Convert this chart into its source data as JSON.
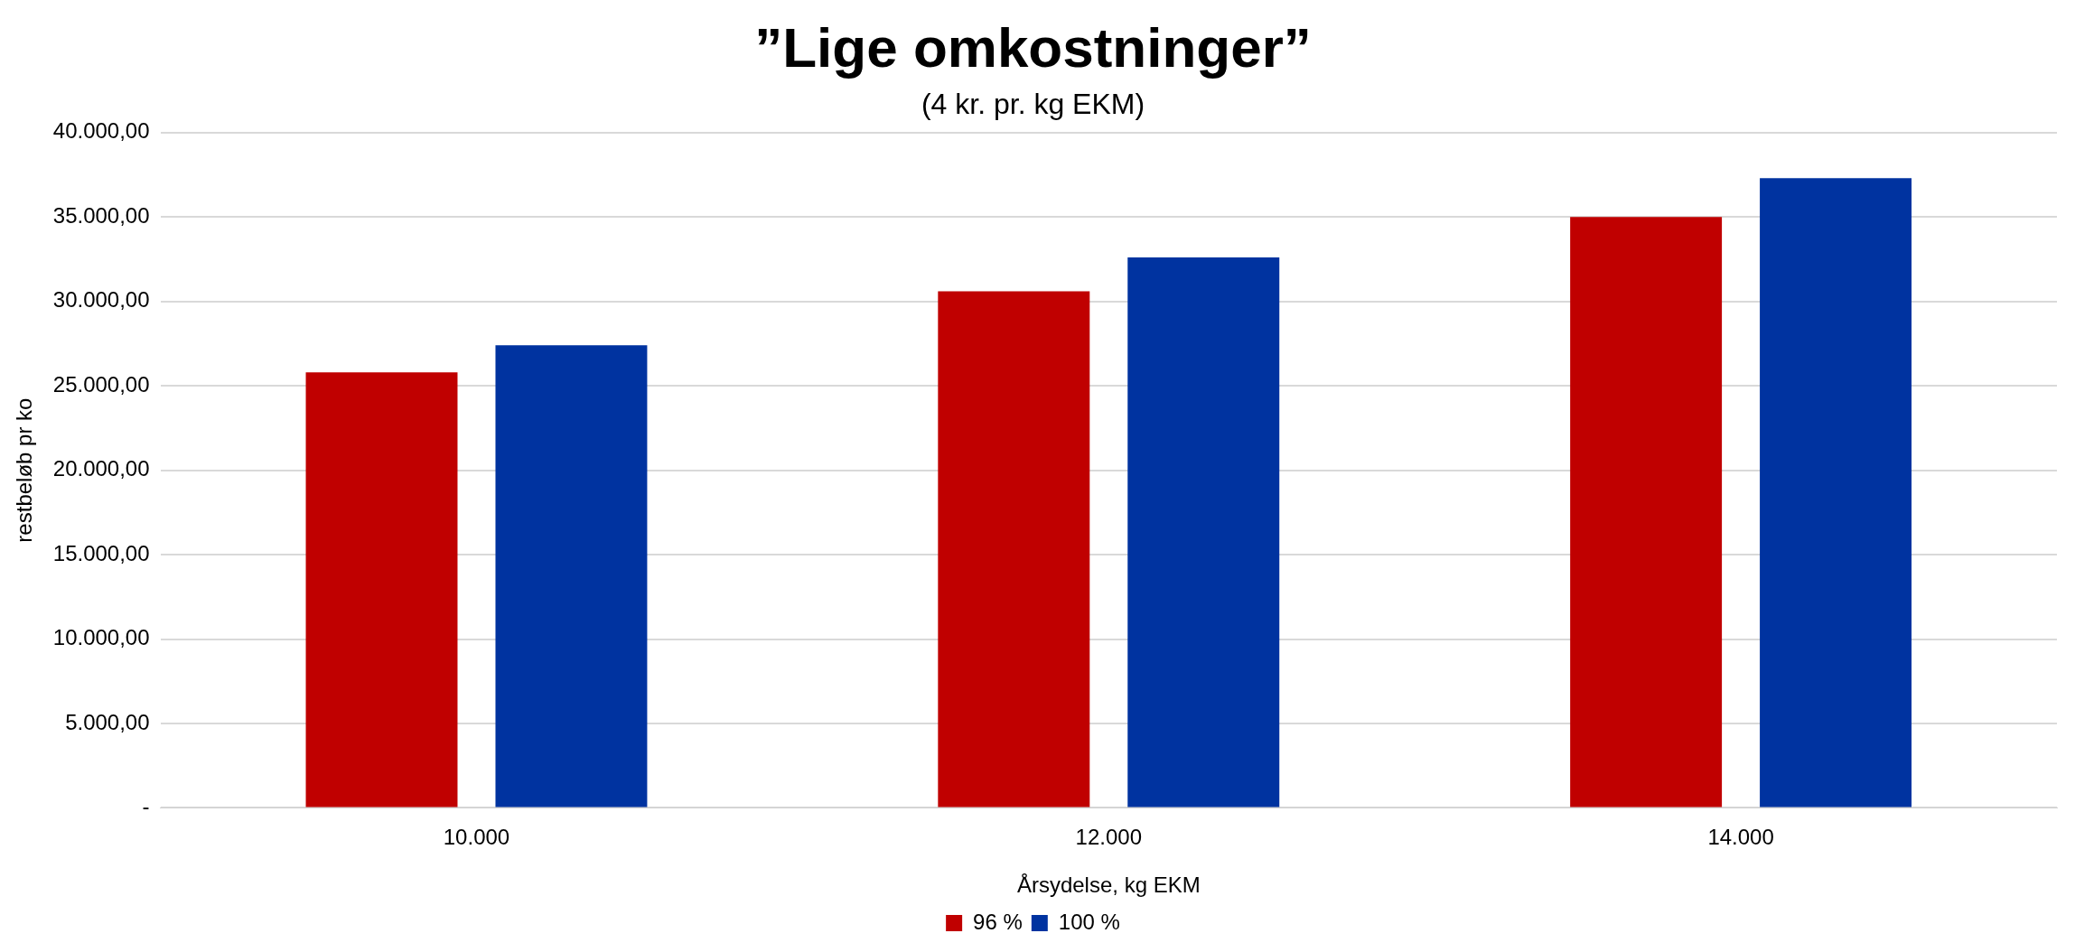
{
  "chart_data": {
    "type": "bar",
    "title": "”Lige omkostninger”",
    "subtitle": "(4 kr. pr. kg EKM)",
    "xlabel": "Årsydelse, kg EKM",
    "ylabel": "restbeløb pr ko",
    "categories": [
      "10.000",
      "12.000",
      "14.000"
    ],
    "series": [
      {
        "name": "96 %",
        "color": "#c00000",
        "values": [
          25800,
          30600,
          35000
        ]
      },
      {
        "name": "100 %",
        "color": "#0033a0",
        "values": [
          27400,
          32600,
          37300
        ]
      }
    ],
    "ylim": [
      0,
      40000
    ],
    "yticks": [
      {
        "value": 0,
        "label": "-"
      },
      {
        "value": 5000,
        "label": "5.000,00"
      },
      {
        "value": 10000,
        "label": "10.000,00"
      },
      {
        "value": 15000,
        "label": "15.000,00"
      },
      {
        "value": 20000,
        "label": "20.000,00"
      },
      {
        "value": 25000,
        "label": "25.000,00"
      },
      {
        "value": 30000,
        "label": "30.000,00"
      },
      {
        "value": 35000,
        "label": "35.000,00"
      },
      {
        "value": 40000,
        "label": "40.000,00"
      }
    ],
    "grid": "y",
    "legend": "bottom"
  }
}
